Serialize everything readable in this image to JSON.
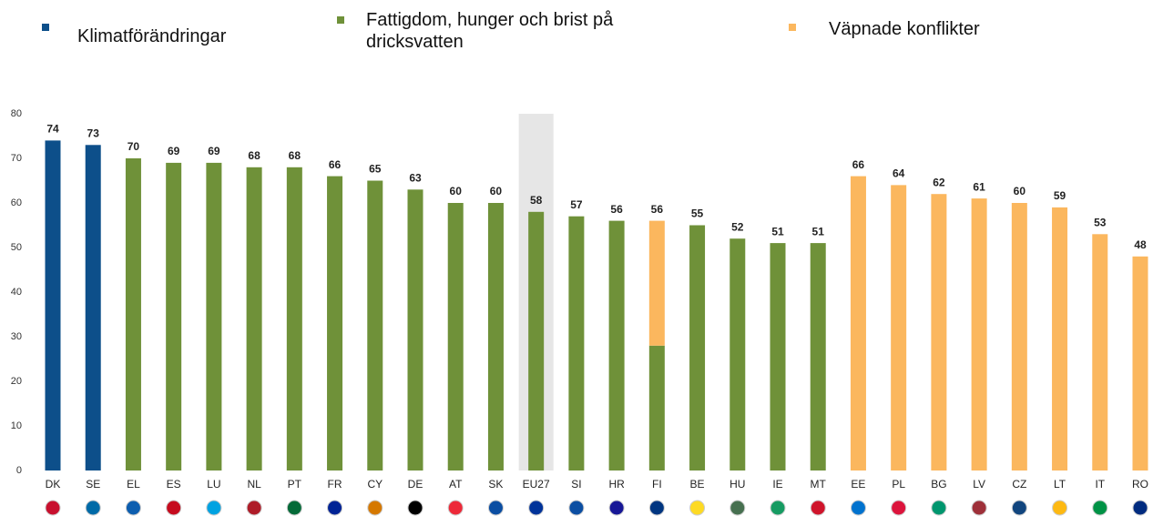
{
  "chart_data": {
    "type": "bar",
    "categories": [
      "DK",
      "SE",
      "EL",
      "ES",
      "LU",
      "NL",
      "PT",
      "FR",
      "CY",
      "DE",
      "AT",
      "SK",
      "EU27",
      "SI",
      "HR",
      "FI",
      "BE",
      "HU",
      "IE",
      "MT",
      "EE",
      "PL",
      "BG",
      "LV",
      "CZ",
      "LT",
      "IT",
      "RO"
    ],
    "values": [
      74,
      73,
      70,
      69,
      69,
      68,
      68,
      66,
      65,
      63,
      60,
      60,
      58,
      57,
      56,
      56,
      55,
      52,
      51,
      51,
      66,
      64,
      62,
      61,
      60,
      59,
      53,
      48
    ],
    "series": [
      {
        "name": "Klimatförändringar",
        "color": "#0d4f8a",
        "values": [
          74,
          73,
          null,
          null,
          null,
          null,
          null,
          null,
          null,
          null,
          null,
          null,
          null,
          null,
          null,
          null,
          null,
          null,
          null,
          null,
          null,
          null,
          null,
          null,
          null,
          null,
          null,
          null
        ]
      },
      {
        "name": "Fattigdom, hunger och brist på dricksvatten",
        "color": "#6f9139",
        "values": [
          null,
          null,
          70,
          69,
          69,
          68,
          68,
          66,
          65,
          63,
          60,
          60,
          58,
          57,
          56,
          28,
          55,
          52,
          51,
          51,
          null,
          null,
          null,
          null,
          null,
          null,
          null,
          null
        ]
      },
      {
        "name": "Väpnade konflikter",
        "color": "#fbb75e",
        "values": [
          null,
          null,
          null,
          null,
          null,
          null,
          null,
          null,
          null,
          null,
          null,
          null,
          null,
          null,
          null,
          28,
          null,
          null,
          null,
          null,
          66,
          64,
          62,
          61,
          60,
          59,
          53,
          48
        ]
      }
    ],
    "stacked": true,
    "highlight": "EU27",
    "ylim": [
      0,
      80
    ],
    "yticks": [
      0,
      10,
      20,
      30,
      40,
      50,
      60,
      70,
      80
    ],
    "grid": false
  }
}
